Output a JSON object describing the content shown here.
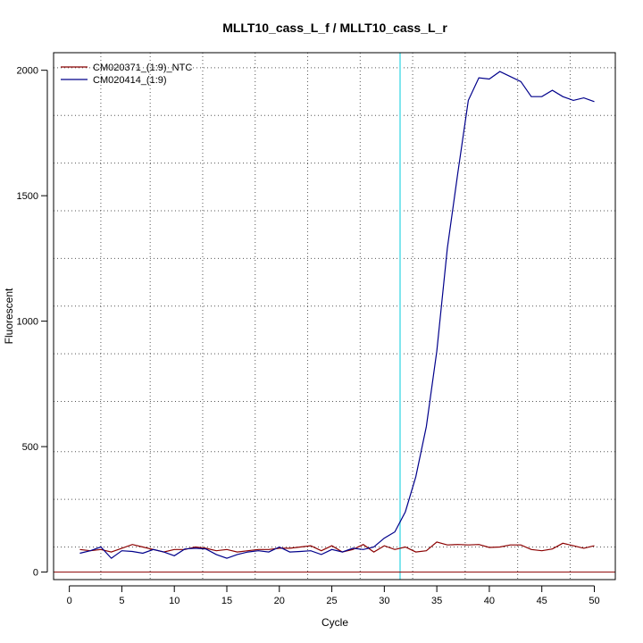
{
  "chart_data": {
    "type": "line",
    "title": "MLLT10_cass_L_f / MLLT10_cass_L_r",
    "xlabel": "Cycle",
    "ylabel": "Fluorescent",
    "xlim": [
      -1.5,
      52
    ],
    "ylim": [
      -30,
      2070
    ],
    "xticks": [
      0,
      5,
      10,
      15,
      20,
      25,
      30,
      35,
      40,
      45,
      50
    ],
    "yticks": [
      0,
      500,
      1000,
      1500,
      2000
    ],
    "grid": true,
    "grid_x": [
      3,
      7.7,
      12.7,
      17.7,
      22.7,
      27.7,
      32.7,
      37.7,
      42.7,
      47.7
    ],
    "grid_y": [
      100,
      290,
      480,
      680,
      870,
      1060,
      1250,
      1440,
      1630,
      1820,
      2010
    ],
    "threshold_cycle": 31.5,
    "threshold_color": "#7fe5ee",
    "baseline_value": 0,
    "baseline_color": "#8b0000",
    "legend_position": "top-left",
    "series": [
      {
        "name": "CM020371_(1:9)_NTC",
        "color": "#8b0000",
        "x": [
          1,
          2,
          3,
          4,
          5,
          6,
          7,
          8,
          9,
          10,
          11,
          12,
          13,
          14,
          15,
          16,
          17,
          18,
          19,
          20,
          21,
          22,
          23,
          24,
          25,
          26,
          27,
          28,
          29,
          30,
          31,
          32,
          33,
          34,
          35,
          36,
          37,
          38,
          39,
          40,
          41,
          42,
          43,
          44,
          45,
          46,
          47,
          48,
          49,
          50
        ],
        "y": [
          90,
          85,
          90,
          80,
          95,
          110,
          100,
          90,
          80,
          90,
          90,
          100,
          95,
          85,
          90,
          80,
          85,
          90,
          90,
          95,
          95,
          100,
          105,
          85,
          105,
          80,
          90,
          110,
          80,
          105,
          90,
          100,
          80,
          85,
          120,
          108,
          110,
          108,
          110,
          98,
          100,
          108,
          108,
          90,
          85,
          92,
          115,
          105,
          95,
          105
        ]
      },
      {
        "name": "CM020414_(1:9)",
        "color": "#00008b",
        "x": [
          1,
          2,
          3,
          4,
          5,
          6,
          7,
          8,
          9,
          10,
          11,
          12,
          13,
          14,
          15,
          16,
          17,
          18,
          19,
          20,
          21,
          22,
          23,
          24,
          25,
          26,
          27,
          28,
          29,
          30,
          31,
          32,
          33,
          34,
          35,
          36,
          37,
          38,
          39,
          40,
          41,
          42,
          43,
          44,
          45,
          46,
          47,
          48,
          49,
          50
        ],
        "y": [
          75,
          85,
          100,
          55,
          85,
          82,
          75,
          90,
          80,
          65,
          92,
          95,
          92,
          70,
          55,
          70,
          80,
          85,
          80,
          100,
          80,
          82,
          85,
          70,
          90,
          80,
          95,
          90,
          100,
          135,
          160,
          240,
          380,
          580,
          880,
          1290,
          1590,
          1880,
          1970,
          1965,
          1995,
          1975,
          1955,
          1895,
          1895,
          1920,
          1895,
          1880,
          1890,
          1875
        ]
      }
    ]
  }
}
